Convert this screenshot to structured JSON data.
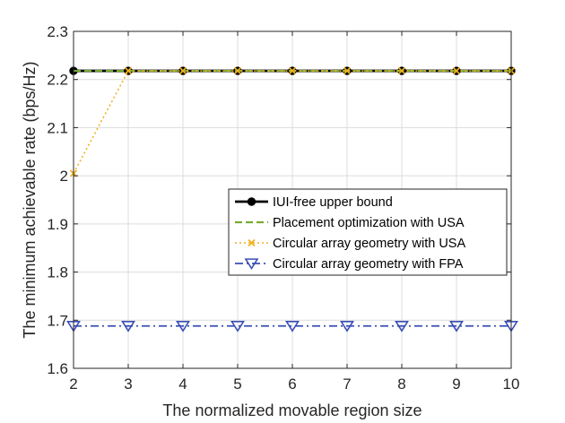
{
  "chart_data": {
    "type": "line",
    "title": "",
    "xlabel": "The normalized movable region size",
    "ylabel": "The minimum achievable rate (bps/Hz)",
    "xlim": [
      2,
      10
    ],
    "ylim": [
      1.6,
      2.3
    ],
    "xticks": [
      2,
      3,
      4,
      5,
      6,
      7,
      8,
      9,
      10
    ],
    "yticks": [
      1.6,
      1.7,
      1.8,
      1.9,
      2.0,
      2.1,
      2.2,
      2.3
    ],
    "ytick_labels": [
      "1.6",
      "1.7",
      "1.8",
      "1.9",
      "2",
      "2.1",
      "2.2",
      "2.3"
    ],
    "grid": true,
    "legend_position": "center-right",
    "x": [
      2,
      3,
      4,
      5,
      6,
      7,
      8,
      9,
      10
    ],
    "series": [
      {
        "name": "IUI-free upper bound",
        "values": [
          2.218,
          2.218,
          2.218,
          2.218,
          2.218,
          2.218,
          2.218,
          2.218,
          2.218
        ],
        "color": "#000000",
        "line_style": "solid",
        "marker": "circle"
      },
      {
        "name": "Placement optimization with USA",
        "values": [
          2.218,
          2.218,
          2.218,
          2.218,
          2.218,
          2.218,
          2.218,
          2.218,
          2.218
        ],
        "color": "#77AC30",
        "line_style": "dashed",
        "marker": "none"
      },
      {
        "name": "Circular array geometry with USA",
        "values": [
          2.005,
          2.218,
          2.218,
          2.218,
          2.218,
          2.218,
          2.218,
          2.218,
          2.218
        ],
        "color": "#EDB120",
        "line_style": "dotted",
        "marker": "x"
      },
      {
        "name": "Circular array geometry with FPA",
        "values": [
          1.688,
          1.688,
          1.688,
          1.688,
          1.688,
          1.688,
          1.688,
          1.688,
          1.688
        ],
        "color": "#3A4EB5",
        "line_style": "dashdot",
        "marker": "triangle-down"
      }
    ]
  }
}
